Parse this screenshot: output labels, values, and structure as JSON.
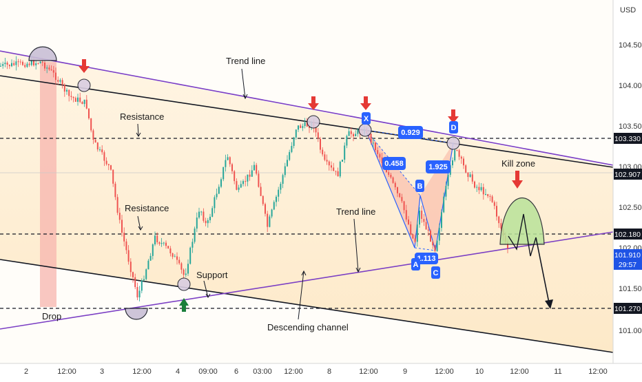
{
  "chart_data": {
    "type": "candlestick",
    "currency": "USD",
    "y_ticks": [
      "104.500",
      "104.000",
      "103.500",
      "103.000",
      "102.500",
      "102.000",
      "101.500",
      "101.000"
    ],
    "x_ticks": [
      "2",
      "12:00",
      "3",
      "12:00",
      "4",
      "09:00",
      "6",
      "03:00",
      "12:00",
      "8",
      "12:00",
      "9",
      "12:00",
      "10",
      "12:00",
      "11",
      "12:00"
    ],
    "ylim": [
      100.55,
      105.05
    ],
    "price_levels": [
      {
        "value": "103.330",
        "color": "#131722"
      },
      {
        "value": "102.907",
        "color": "#131722"
      },
      {
        "value": "102.180",
        "color": "#131722"
      },
      {
        "value": "101.270",
        "color": "#131722"
      }
    ],
    "last_price": {
      "value": "101.910",
      "countdown": "29:57",
      "color": "#1e53e5"
    },
    "pattern_points": [
      "X",
      "A",
      "B",
      "C",
      "D"
    ],
    "ratios": [
      "0.929",
      "0.458",
      "1.925",
      "1.113"
    ],
    "annotations": [
      "Trend line",
      "Resistance",
      "Resistance",
      "Trend line",
      "Support",
      "Descending channel",
      "Drop",
      "Kill zone"
    ],
    "colors": {
      "up": "#26a69a",
      "down": "#ef5350",
      "channel": "#131722",
      "trendline": "#7b3fc4",
      "pattern": "#2962ff",
      "zone": "#d7f0b8",
      "drop": "#f4a6a6",
      "down_arrow": "#e53935",
      "up_arrow": "#1b7f3b"
    }
  }
}
